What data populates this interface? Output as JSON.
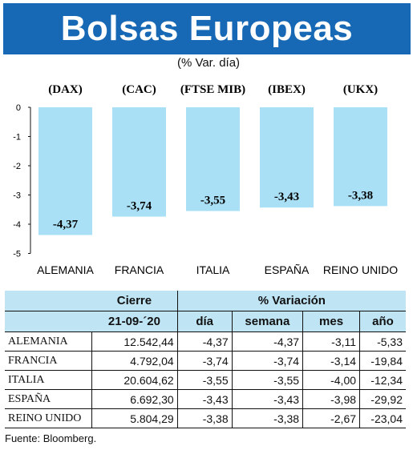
{
  "header": {
    "title": "Bolsas Europeas",
    "subtitle": "(% Var. día)"
  },
  "colors": {
    "banner": "#1769b5",
    "bar": "#a9e0f5",
    "table_header": "#bfe4f4"
  },
  "chart_data": {
    "type": "bar",
    "indices": [
      "(DAX)",
      "(CAC)",
      "(FTSE MIB)",
      "(IBEX)",
      "(UKX)"
    ],
    "categories": [
      "ALEMANIA",
      "FRANCIA",
      "ITALIA",
      "ESPAÑA",
      "REINO UNIDO"
    ],
    "values": [
      -4.37,
      -3.74,
      -3.55,
      -3.43,
      -3.38
    ],
    "value_labels": [
      "-4,37",
      "-3,74",
      "-3,55",
      "-3,43",
      "-3,38"
    ],
    "yticks": [
      "0",
      "-1",
      "-2",
      "-3",
      "-4",
      "-5"
    ],
    "ylim": [
      -5,
      0
    ],
    "grid": false
  },
  "table": {
    "header_cierre": "Cierre",
    "header_variacion": "% Variación",
    "date": "21-09-´20",
    "col_dia": "día",
    "col_semana": "semana",
    "col_mes": "mes",
    "col_anio": "año",
    "rows": [
      {
        "name": "ALEMANIA",
        "cierre": "12.542,44",
        "dia": "-4,37",
        "semana": "-4,37",
        "mes": "-3,11",
        "anio": "-5,33"
      },
      {
        "name": "FRANCIA",
        "cierre": "4.792,04",
        "dia": "-3,74",
        "semana": "-3,74",
        "mes": "-3,14",
        "anio": "-19,84"
      },
      {
        "name": "ITALIA",
        "cierre": "20.604,62",
        "dia": "-3,55",
        "semana": "-3,55",
        "mes": "-4,00",
        "anio": "-12,34"
      },
      {
        "name": "ESPAÑA",
        "cierre": "6.692,30",
        "dia": "-3,43",
        "semana": "-3,43",
        "mes": "-3,98",
        "anio": "-29,92"
      },
      {
        "name": "REINO UNIDO",
        "cierre": "5.804,29",
        "dia": "-3,38",
        "semana": "-3,38",
        "mes": "-2,67",
        "anio": "-23,04"
      }
    ]
  },
  "source": "Fuente: Bloomberg."
}
